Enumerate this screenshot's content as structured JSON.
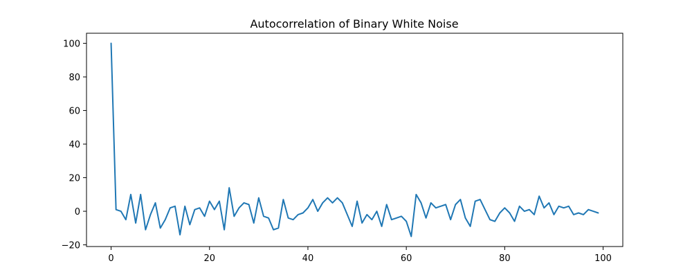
{
  "chart_data": {
    "type": "line",
    "title": "Autocorrelation of Binary White Noise",
    "xlabel": "",
    "ylabel": "",
    "xlim": [
      -5,
      104
    ],
    "ylim": [
      -21,
      106
    ],
    "xticks": [
      0,
      20,
      40,
      60,
      80,
      100
    ],
    "xtick_labels": [
      "0",
      "20",
      "40",
      "60",
      "80",
      "100"
    ],
    "yticks": [
      -20,
      0,
      20,
      40,
      60,
      80,
      100
    ],
    "ytick_labels": [
      "−20",
      "0",
      "20",
      "40",
      "60",
      "80",
      "100"
    ],
    "grid": false,
    "legend": "none",
    "series": [
      {
        "color": "#1f77b4",
        "x": [
          0,
          1,
          2,
          3,
          4,
          5,
          6,
          7,
          8,
          9,
          10,
          11,
          12,
          13,
          14,
          15,
          16,
          17,
          18,
          19,
          20,
          21,
          22,
          23,
          24,
          25,
          26,
          27,
          28,
          29,
          30,
          31,
          32,
          33,
          34,
          35,
          36,
          37,
          38,
          39,
          40,
          41,
          42,
          43,
          44,
          45,
          46,
          47,
          48,
          49,
          50,
          51,
          52,
          53,
          54,
          55,
          56,
          57,
          58,
          59,
          60,
          61,
          62,
          63,
          64,
          65,
          66,
          67,
          68,
          69,
          70,
          71,
          72,
          73,
          74,
          75,
          76,
          77,
          78,
          79,
          80,
          81,
          82,
          83,
          84,
          85,
          86,
          87,
          88,
          89,
          90,
          91,
          92,
          93,
          94,
          95,
          96,
          97,
          98,
          99
        ],
        "values": [
          100,
          1,
          0,
          -5,
          10,
          -7,
          10,
          -11,
          -2,
          5,
          -10,
          -5,
          2,
          3,
          -14,
          3,
          -8,
          1,
          2,
          -3,
          6,
          1,
          6,
          -11,
          14,
          -3,
          2,
          5,
          4,
          -7,
          8,
          -3,
          -4,
          -11,
          -10,
          7,
          -4,
          -5,
          -2,
          -1,
          2,
          7,
          0,
          5,
          8,
          5,
          8,
          5,
          -2,
          -9,
          6,
          -7,
          -2,
          -5,
          0,
          -9,
          4,
          -5,
          -4,
          -3,
          -6,
          -15,
          10,
          5,
          -4,
          5,
          2,
          3,
          4,
          -5,
          4,
          7,
          -4,
          -9,
          6,
          7,
          1,
          -5,
          -6,
          -1,
          2,
          -1,
          -6,
          3,
          0,
          1,
          -2,
          9,
          2,
          5,
          -2,
          3,
          2,
          3,
          -2,
          -1,
          -2,
          1,
          0,
          -1
        ]
      }
    ]
  }
}
